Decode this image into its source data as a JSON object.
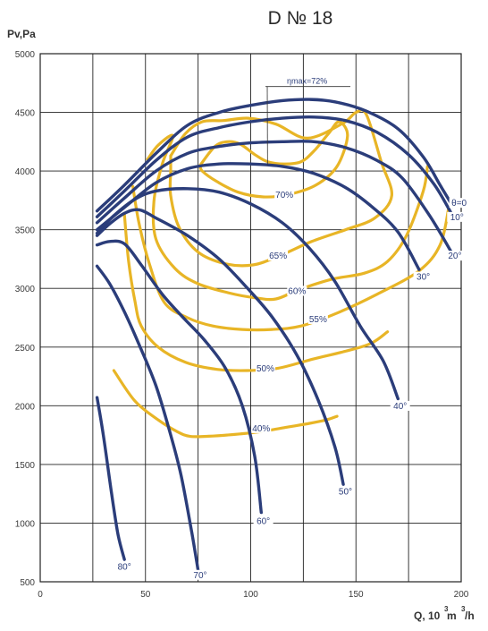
{
  "chart_data": {
    "type": "line",
    "title": "D № 18",
    "ylabel": "Pv,Pa",
    "xlabel_main": "Q, 10",
    "xlabel_sup1": "3",
    "xlabel_unit": " m",
    "xlabel_sup2": "3",
    "xlabel_tail": "/h",
    "xlim": [
      0,
      200
    ],
    "ylim": [
      500,
      5000
    ],
    "x_ticks": [
      0,
      50,
      100,
      150,
      200
    ],
    "y_ticks": [
      500,
      1000,
      1500,
      2000,
      2500,
      3000,
      3500,
      4000,
      4500,
      5000
    ],
    "x_tick_labels": [
      "0",
      "50",
      "100",
      "150",
      "200"
    ],
    "y_tick_labels": [
      "500",
      "1000",
      "1500",
      "2000",
      "2500",
      "3000",
      "3500",
      "4000",
      "4500",
      "5000"
    ],
    "grid": true,
    "colors": {
      "pressure": "#2b3d7a",
      "efficiency": "#e8b526",
      "grid": "#222222"
    },
    "pressure_series": [
      {
        "name": "θ=0",
        "points": [
          [
            27,
            3660
          ],
          [
            40,
            3880
          ],
          [
            55,
            4150
          ],
          [
            70,
            4390
          ],
          [
            85,
            4500
          ],
          [
            100,
            4560
          ],
          [
            115,
            4600
          ],
          [
            128,
            4610
          ],
          [
            140,
            4590
          ],
          [
            155,
            4510
          ],
          [
            170,
            4360
          ],
          [
            182,
            4120
          ],
          [
            190,
            3880
          ],
          [
            196,
            3700
          ]
        ]
      },
      {
        "name": "10°",
        "points": [
          [
            27,
            3610
          ],
          [
            40,
            3830
          ],
          [
            55,
            4090
          ],
          [
            70,
            4290
          ],
          [
            85,
            4370
          ],
          [
            100,
            4420
          ],
          [
            115,
            4450
          ],
          [
            130,
            4460
          ],
          [
            145,
            4430
          ],
          [
            160,
            4330
          ],
          [
            175,
            4140
          ],
          [
            187,
            3890
          ],
          [
            195,
            3650
          ]
        ]
      },
      {
        "name": "20°",
        "points": [
          [
            27,
            3560
          ],
          [
            40,
            3770
          ],
          [
            55,
            4000
          ],
          [
            70,
            4150
          ],
          [
            85,
            4210
          ],
          [
            100,
            4240
          ],
          [
            115,
            4250
          ],
          [
            130,
            4250
          ],
          [
            145,
            4200
          ],
          [
            160,
            4090
          ],
          [
            172,
            3940
          ],
          [
            185,
            3620
          ],
          [
            195,
            3320
          ]
        ]
      },
      {
        "name": "30°",
        "points": [
          [
            27,
            3500
          ],
          [
            40,
            3690
          ],
          [
            55,
            3900
          ],
          [
            70,
            4020
          ],
          [
            85,
            4060
          ],
          [
            100,
            4060
          ],
          [
            115,
            4040
          ],
          [
            130,
            3980
          ],
          [
            145,
            3860
          ],
          [
            158,
            3690
          ],
          [
            170,
            3480
          ],
          [
            180,
            3160
          ]
        ]
      },
      {
        "name": "40°",
        "points": [
          [
            27,
            3470
          ],
          [
            35,
            3620
          ],
          [
            45,
            3760
          ],
          [
            55,
            3830
          ],
          [
            70,
            3850
          ],
          [
            85,
            3820
          ],
          [
            100,
            3720
          ],
          [
            115,
            3560
          ],
          [
            128,
            3340
          ],
          [
            140,
            3060
          ],
          [
            152,
            2680
          ],
          [
            163,
            2380
          ],
          [
            170,
            2060
          ]
        ]
      },
      {
        "name": "50°",
        "points": [
          [
            27,
            3450
          ],
          [
            33,
            3550
          ],
          [
            40,
            3640
          ],
          [
            47,
            3670
          ],
          [
            55,
            3600
          ],
          [
            70,
            3450
          ],
          [
            85,
            3250
          ],
          [
            98,
            3010
          ],
          [
            110,
            2760
          ],
          [
            122,
            2430
          ],
          [
            132,
            2050
          ],
          [
            140,
            1650
          ],
          [
            144,
            1330
          ]
        ]
      },
      {
        "name": "60°",
        "points": [
          [
            27,
            3370
          ],
          [
            33,
            3400
          ],
          [
            40,
            3380
          ],
          [
            48,
            3200
          ],
          [
            58,
            2950
          ],
          [
            68,
            2750
          ],
          [
            78,
            2560
          ],
          [
            88,
            2320
          ],
          [
            96,
            2000
          ],
          [
            102,
            1560
          ],
          [
            105,
            1090
          ]
        ]
      },
      {
        "name": "70°",
        "points": [
          [
            27,
            3190
          ],
          [
            33,
            3040
          ],
          [
            40,
            2800
          ],
          [
            47,
            2520
          ],
          [
            55,
            2170
          ],
          [
            62,
            1750
          ],
          [
            67,
            1400
          ],
          [
            72,
            920
          ],
          [
            75,
            600
          ]
        ]
      },
      {
        "name": "80°",
        "points": [
          [
            27,
            2070
          ],
          [
            30,
            1750
          ],
          [
            34,
            1240
          ],
          [
            37,
            900
          ],
          [
            40,
            690
          ]
        ]
      }
    ],
    "efficiency_series": [
      {
        "name": "70%",
        "points": [
          [
            76,
            4050
          ],
          [
            83,
            4210
          ],
          [
            89,
            4250
          ],
          [
            95,
            4230
          ],
          [
            102,
            4140
          ],
          [
            108,
            4080
          ],
          [
            116,
            4060
          ],
          [
            124,
            4080
          ],
          [
            130,
            4170
          ],
          [
            137,
            4320
          ],
          [
            142,
            4420
          ],
          [
            146,
            4300
          ],
          [
            141,
            4040
          ],
          [
            131,
            3880
          ],
          [
            118,
            3800
          ],
          [
            106,
            3780
          ],
          [
            94,
            3820
          ],
          [
            84,
            3910
          ],
          [
            77,
            4000
          ],
          [
            76,
            4050
          ]
        ]
      },
      {
        "name": "65%",
        "points": [
          [
            62,
            4130
          ],
          [
            69,
            4320
          ],
          [
            77,
            4420
          ],
          [
            87,
            4430
          ],
          [
            99,
            4450
          ],
          [
            112,
            4400
          ],
          [
            127,
            4280
          ],
          [
            144,
            4410
          ],
          [
            150,
            4500
          ],
          [
            155,
            4480
          ],
          [
            162,
            4080
          ],
          [
            167,
            3790
          ],
          [
            159,
            3600
          ],
          [
            145,
            3500
          ],
          [
            129,
            3400
          ],
          [
            114,
            3280
          ],
          [
            101,
            3200
          ],
          [
            88,
            3210
          ],
          [
            75,
            3310
          ],
          [
            66,
            3520
          ],
          [
            62,
            3790
          ],
          [
            62,
            4000
          ],
          [
            62,
            4130
          ]
        ]
      },
      {
        "name": "60%",
        "points": [
          [
            51,
            4100
          ],
          [
            56,
            4220
          ],
          [
            63,
            4300
          ],
          [
            58,
            4060
          ],
          [
            54,
            3740
          ],
          [
            55,
            3420
          ],
          [
            64,
            3170
          ],
          [
            75,
            3040
          ],
          [
            90,
            2960
          ],
          [
            102,
            2920
          ],
          [
            112,
            2910
          ],
          [
            123,
            2990
          ],
          [
            139,
            3080
          ],
          [
            154,
            3130
          ],
          [
            165,
            3230
          ],
          [
            174,
            3450
          ],
          [
            182,
            3830
          ],
          [
            184,
            4040
          ]
        ]
      },
      {
        "name": "55%",
        "points": [
          [
            44,
            3870
          ],
          [
            47,
            3550
          ],
          [
            52,
            3200
          ],
          [
            59,
            2880
          ],
          [
            70,
            2750
          ],
          [
            82,
            2680
          ],
          [
            96,
            2650
          ],
          [
            110,
            2650
          ],
          [
            124,
            2680
          ],
          [
            141,
            2790
          ],
          [
            160,
            2950
          ],
          [
            180,
            3150
          ],
          [
            190,
            3370
          ],
          [
            194,
            3680
          ]
        ]
      },
      {
        "name": "50%",
        "points": [
          [
            40,
            3630
          ],
          [
            42,
            3230
          ],
          [
            45,
            2890
          ],
          [
            48,
            2680
          ],
          [
            56,
            2500
          ],
          [
            69,
            2370
          ],
          [
            84,
            2310
          ],
          [
            98,
            2300
          ],
          [
            113,
            2320
          ],
          [
            130,
            2400
          ],
          [
            144,
            2460
          ],
          [
            157,
            2530
          ],
          [
            165,
            2630
          ]
        ]
      },
      {
        "name": "40%",
        "points": [
          [
            35,
            2300
          ],
          [
            45,
            2040
          ],
          [
            56,
            1880
          ],
          [
            65,
            1780
          ],
          [
            71,
            1740
          ],
          [
            80,
            1740
          ],
          [
            95,
            1760
          ],
          [
            105,
            1780
          ],
          [
            118,
            1820
          ],
          [
            128,
            1850
          ],
          [
            136,
            1880
          ],
          [
            141,
            1910
          ]
        ]
      }
    ],
    "pressure_labels": [
      {
        "text": "θ=0",
        "x": 199,
        "y": 3710
      },
      {
        "text": "10°",
        "x": 198,
        "y": 3590
      },
      {
        "text": "20°",
        "x": 197,
        "y": 3260
      },
      {
        "text": "30°",
        "x": 182,
        "y": 3080
      },
      {
        "text": "40°",
        "x": 171,
        "y": 1980
      },
      {
        "text": "50°",
        "x": 145,
        "y": 1250
      },
      {
        "text": "60°",
        "x": 106,
        "y": 1000
      },
      {
        "text": "70°",
        "x": 76,
        "y": 540
      },
      {
        "text": "80°",
        "x": 40,
        "y": 610
      }
    ],
    "efficiency_labels": [
      {
        "text": "70%",
        "x": 116,
        "y": 3780
      },
      {
        "text": "65%",
        "x": 113,
        "y": 3260
      },
      {
        "text": "60%",
        "x": 122,
        "y": 2960
      },
      {
        "text": "55%",
        "x": 132,
        "y": 2720
      },
      {
        "text": "50%",
        "x": 107,
        "y": 2300
      },
      {
        "text": "40%",
        "x": 105,
        "y": 1790
      }
    ],
    "eta_label": {
      "text": "ηmax=72%",
      "x": 124,
      "y": 4720
    }
  }
}
